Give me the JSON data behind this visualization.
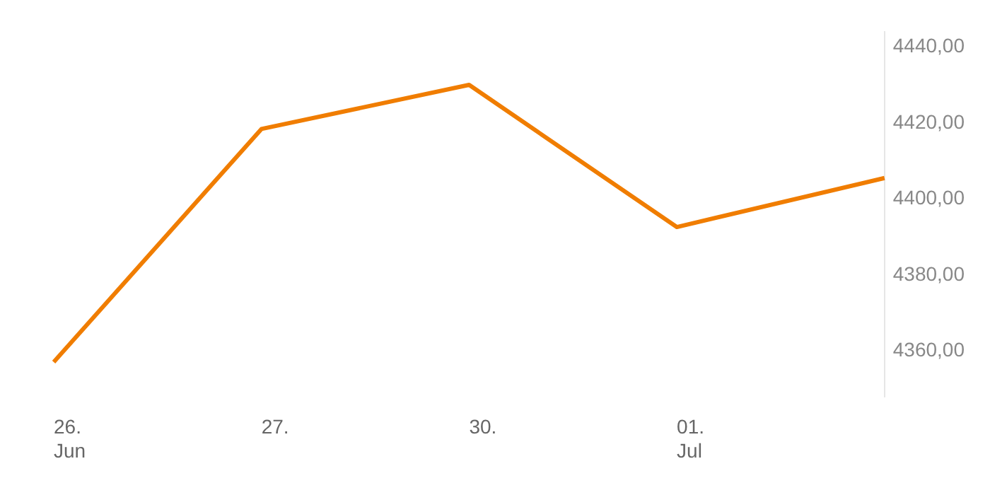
{
  "chart_data": {
    "type": "line",
    "categories": [
      "26.\nJun",
      "27.",
      "30.",
      "01.\nJul",
      null
    ],
    "series": [
      {
        "color": "#f07d00",
        "values": [
          4357.1,
          4418.4,
          4430,
          4392.6,
          4405.5
        ]
      }
    ],
    "ylim": [
      4348,
      4444
    ],
    "yticks": [
      {
        "value": 4360,
        "label": "4360,00"
      },
      {
        "value": 4380,
        "label": "4380,00"
      },
      {
        "value": 4400,
        "label": "4400,00"
      },
      {
        "value": 4420,
        "label": "4420,00"
      },
      {
        "value": 4440,
        "label": "4440,00"
      }
    ],
    "grid": false,
    "legend": false,
    "marker": "none",
    "line_style": "solid"
  }
}
